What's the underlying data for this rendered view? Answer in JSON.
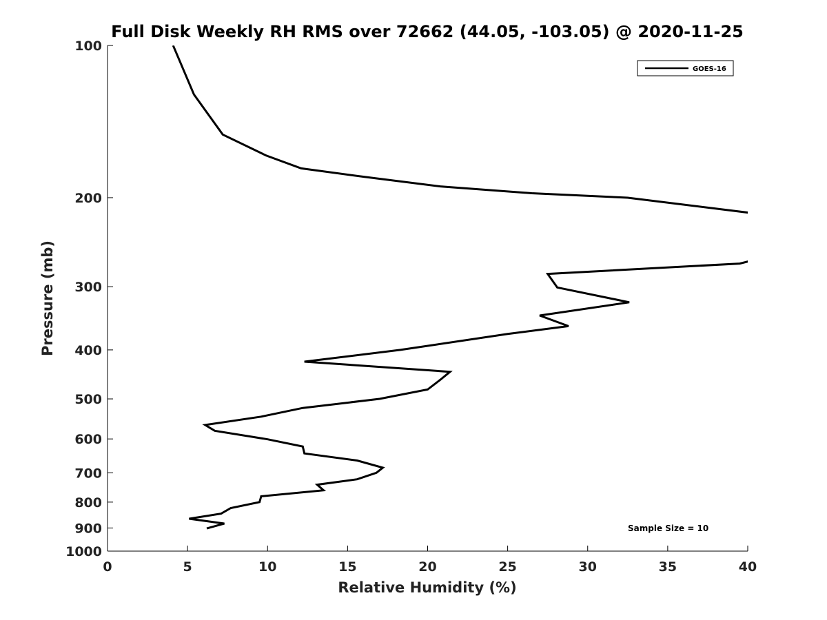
{
  "chart_data": {
    "type": "line",
    "title": "Full Disk Weekly RH RMS over 72662 (44.05, -103.05) @ 2020-11-25",
    "xlabel": "Relative Humidity (%)",
    "ylabel": "Pressure (mb)",
    "xlim": [
      0,
      40
    ],
    "ylim": [
      1000,
      100
    ],
    "yscale": "log",
    "x_ticks": [
      0,
      5,
      10,
      15,
      20,
      25,
      30,
      35,
      40
    ],
    "y_ticks": [
      100,
      200,
      300,
      400,
      500,
      600,
      700,
      800,
      900,
      1000
    ],
    "legend_position": "top-right",
    "annotation": "Sample Size = 10",
    "series": [
      {
        "name": "GOES-16",
        "color": "#000000",
        "points": [
          {
            "x": 4.1,
            "p": 100
          },
          {
            "x": 5.4,
            "p": 125
          },
          {
            "x": 7.2,
            "p": 150
          },
          {
            "x": 9.9,
            "p": 165
          },
          {
            "x": 12.1,
            "p": 175
          },
          {
            "x": 16.1,
            "p": 182
          },
          {
            "x": 20.8,
            "p": 190
          },
          {
            "x": 26.5,
            "p": 196
          },
          {
            "x": 32.5,
            "p": 200
          },
          {
            "x": 40.5,
            "p": 215
          },
          {
            "x": null,
            "p": null
          },
          {
            "x": 40.5,
            "p": 265
          },
          {
            "x": 39.5,
            "p": 270
          },
          {
            "x": 27.5,
            "p": 283
          },
          {
            "x": 28.1,
            "p": 301
          },
          {
            "x": 32.6,
            "p": 322
          },
          {
            "x": 27.0,
            "p": 342
          },
          {
            "x": 28.8,
            "p": 359
          },
          {
            "x": 25.0,
            "p": 372
          },
          {
            "x": 18.3,
            "p": 400
          },
          {
            "x": 12.3,
            "p": 422
          },
          {
            "x": 21.4,
            "p": 442
          },
          {
            "x": 20.8,
            "p": 458
          },
          {
            "x": 20.0,
            "p": 479
          },
          {
            "x": 17.0,
            "p": 500
          },
          {
            "x": 12.2,
            "p": 521
          },
          {
            "x": 9.6,
            "p": 542
          },
          {
            "x": 6.1,
            "p": 563
          },
          {
            "x": 6.7,
            "p": 578
          },
          {
            "x": 10.0,
            "p": 601
          },
          {
            "x": 12.2,
            "p": 621
          },
          {
            "x": 12.3,
            "p": 641
          },
          {
            "x": 15.6,
            "p": 662
          },
          {
            "x": 17.2,
            "p": 684
          },
          {
            "x": 16.8,
            "p": 700
          },
          {
            "x": 15.6,
            "p": 721
          },
          {
            "x": 13.1,
            "p": 739
          },
          {
            "x": 13.5,
            "p": 758
          },
          {
            "x": 9.6,
            "p": 779
          },
          {
            "x": 9.5,
            "p": 800
          },
          {
            "x": 7.7,
            "p": 822
          },
          {
            "x": 7.1,
            "p": 843
          },
          {
            "x": 5.1,
            "p": 863
          },
          {
            "x": 7.3,
            "p": 882
          },
          {
            "x": 6.2,
            "p": 902
          }
        ]
      }
    ]
  }
}
